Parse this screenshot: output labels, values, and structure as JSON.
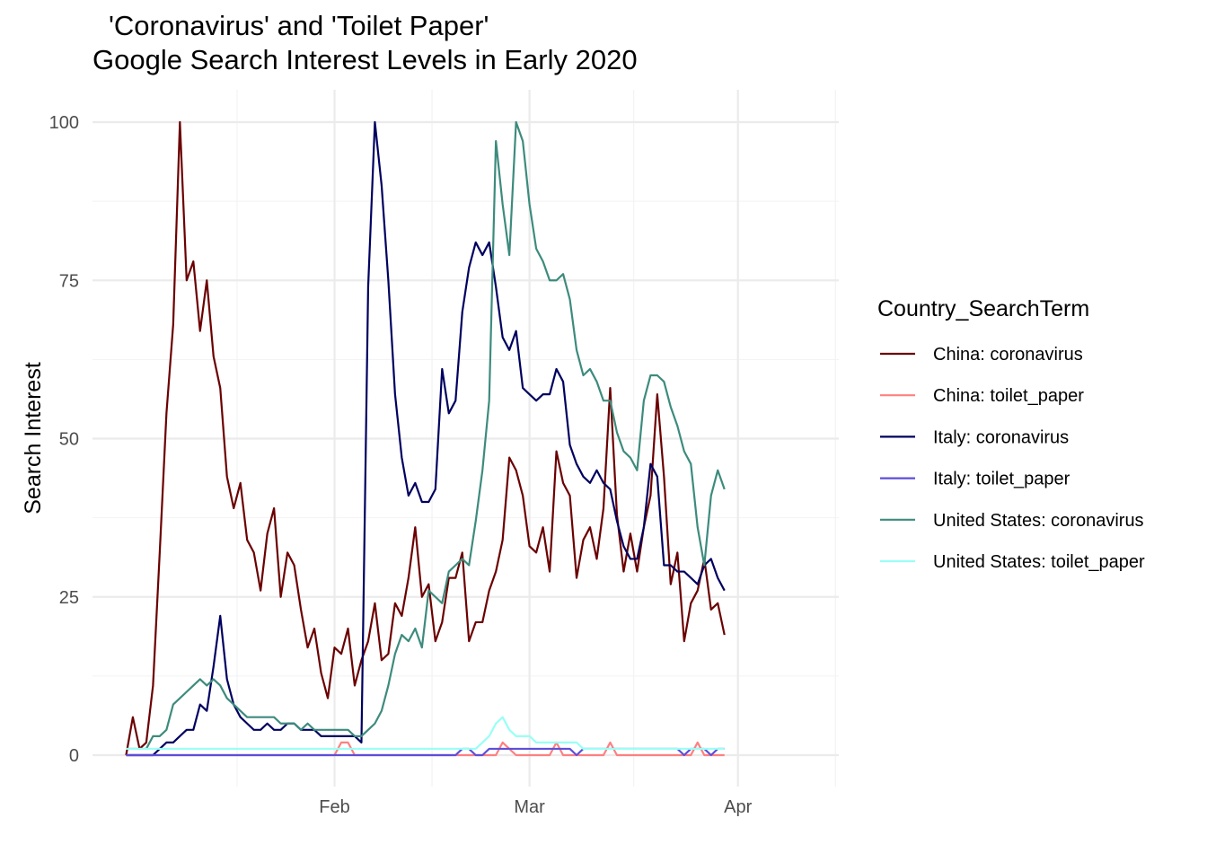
{
  "chart_data": {
    "type": "line",
    "title_lines": [
      "'Coronavirus' and 'Toilet Paper'",
      "Google Search Interest Levels in Early 2020"
    ],
    "xlabel": "",
    "ylabel": "Search Interest",
    "x_start": "2020-01-01",
    "x_end": "2020-04-15",
    "xlim": [
      "2019-12-27",
      "2020-04-16"
    ],
    "ylim": [
      0,
      100
    ],
    "x_ticks": [
      {
        "label": "Feb",
        "date": "2020-02-01"
      },
      {
        "label": "Mar",
        "date": "2020-03-01"
      },
      {
        "label": "Apr",
        "date": "2020-04-01"
      }
    ],
    "y_ticks": [
      0,
      25,
      50,
      75,
      100
    ],
    "grid": true,
    "legend": {
      "title": "Country_SearchTerm",
      "position": "right"
    },
    "series": [
      {
        "name": "China: coronavirus",
        "color": "#6b0000",
        "values": [
          0,
          6,
          1,
          2,
          11,
          32,
          54,
          68,
          100,
          75,
          78,
          67,
          75,
          63,
          58,
          44,
          39,
          43,
          34,
          32,
          26,
          35,
          39,
          25,
          32,
          30,
          23,
          17,
          20,
          13,
          9,
          17,
          16,
          20,
          11,
          15,
          18,
          24,
          15,
          16,
          24,
          22,
          28,
          36,
          25,
          27,
          18,
          21,
          28,
          28,
          32,
          18,
          21,
          21,
          26,
          29,
          34,
          47,
          45,
          41,
          33,
          32,
          36,
          29,
          48,
          43,
          41,
          28,
          34,
          36,
          31,
          39,
          58,
          38,
          29,
          35,
          29,
          36,
          41,
          57,
          44,
          27,
          32,
          18,
          24,
          26,
          31,
          23,
          24,
          19
        ]
      },
      {
        "name": "China: toilet_paper",
        "color": "#ff8080",
        "values": [
          0,
          0,
          0,
          0,
          0,
          0,
          0,
          0,
          0,
          0,
          0,
          0,
          0,
          0,
          0,
          0,
          0,
          0,
          0,
          0,
          0,
          0,
          0,
          0,
          0,
          0,
          0,
          0,
          0,
          0,
          0,
          0,
          2,
          2,
          0,
          0,
          0,
          0,
          0,
          0,
          0,
          0,
          0,
          0,
          0,
          0,
          0,
          0,
          0,
          0,
          0,
          0,
          0,
          0,
          0,
          0,
          2,
          1,
          0,
          0,
          0,
          0,
          0,
          0,
          2,
          0,
          0,
          0,
          0,
          0,
          0,
          0,
          2,
          0,
          0,
          0,
          0,
          0,
          0,
          0,
          0,
          0,
          0,
          0,
          0,
          2,
          0,
          0,
          0,
          0
        ]
      },
      {
        "name": "Italy: coronavirus",
        "color": "#000060",
        "values": [
          0,
          0,
          0,
          0,
          0,
          1,
          2,
          2,
          3,
          4,
          4,
          8,
          7,
          14,
          22,
          12,
          8,
          6,
          5,
          4,
          4,
          5,
          4,
          4,
          5,
          5,
          4,
          4,
          4,
          3,
          3,
          3,
          3,
          3,
          3,
          2,
          74,
          100,
          90,
          75,
          57,
          47,
          41,
          43,
          40,
          40,
          42,
          61,
          54,
          56,
          70,
          77,
          81,
          79,
          81,
          74,
          66,
          64,
          67,
          58,
          57,
          56,
          57,
          57,
          61,
          59,
          49,
          46,
          44,
          43,
          45,
          43,
          42,
          37,
          33,
          31,
          31,
          36,
          46,
          44,
          30,
          30,
          29,
          29,
          28,
          27,
          30,
          31,
          28,
          26
        ]
      },
      {
        "name": "Italy: toilet_paper",
        "color": "#5c4fd9",
        "values": [
          0,
          0,
          0,
          0,
          0,
          0,
          0,
          0,
          0,
          0,
          0,
          0,
          0,
          0,
          0,
          0,
          0,
          0,
          0,
          0,
          0,
          0,
          0,
          0,
          0,
          0,
          0,
          0,
          0,
          0,
          0,
          0,
          0,
          0,
          0,
          0,
          0,
          0,
          0,
          0,
          0,
          0,
          0,
          0,
          0,
          0,
          0,
          0,
          0,
          0,
          1,
          1,
          0,
          0,
          1,
          1,
          1,
          1,
          1,
          1,
          1,
          1,
          1,
          1,
          1,
          1,
          1,
          0,
          1,
          1,
          1,
          1,
          1,
          1,
          1,
          1,
          1,
          1,
          1,
          1,
          1,
          1,
          1,
          0,
          1,
          1,
          1,
          0,
          1,
          1
        ]
      },
      {
        "name": "United States: coronavirus",
        "color": "#3d8b7d",
        "values": [
          1,
          1,
          1,
          1,
          3,
          3,
          4,
          8,
          9,
          10,
          11,
          12,
          11,
          12,
          11,
          9,
          8,
          7,
          6,
          6,
          6,
          6,
          6,
          5,
          5,
          5,
          4,
          5,
          4,
          4,
          4,
          4,
          4,
          4,
          3,
          3,
          4,
          5,
          7,
          11,
          16,
          19,
          18,
          20,
          17,
          26,
          25,
          24,
          29,
          30,
          31,
          30,
          37,
          45,
          56,
          97,
          87,
          79,
          100,
          97,
          87,
          80,
          78,
          75,
          75,
          76,
          72,
          64,
          60,
          61,
          59,
          56,
          56,
          51,
          48,
          47,
          45,
          56,
          60,
          60,
          59,
          55,
          52,
          48,
          46,
          36,
          30,
          41,
          45,
          42
        ]
      },
      {
        "name": "United States: toilet_paper",
        "color": "#99fff5",
        "values": [
          1,
          1,
          1,
          1,
          1,
          1,
          1,
          1,
          1,
          1,
          1,
          1,
          1,
          1,
          1,
          1,
          1,
          1,
          1,
          1,
          1,
          1,
          1,
          1,
          1,
          1,
          1,
          1,
          1,
          1,
          1,
          1,
          1,
          1,
          1,
          1,
          1,
          1,
          1,
          1,
          1,
          1,
          1,
          1,
          1,
          1,
          1,
          1,
          1,
          1,
          1,
          1,
          1,
          2,
          3,
          5,
          6,
          4,
          3,
          3,
          3,
          2,
          2,
          2,
          2,
          2,
          2,
          2,
          1,
          1,
          1,
          1,
          1,
          1,
          1,
          1,
          1,
          1,
          1,
          1,
          1,
          1,
          1,
          1,
          1,
          1,
          1,
          1,
          1,
          1
        ]
      }
    ]
  }
}
